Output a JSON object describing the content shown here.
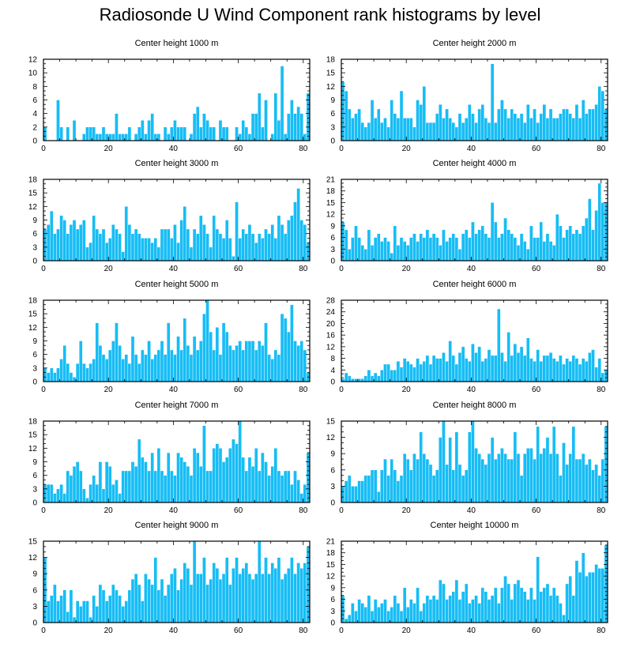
{
  "figure_title": "Radiosonde U Wind Component rank histograms by level",
  "colors": {
    "bar": "#17bdf5",
    "bar_edge": "#ffffff",
    "axis": "#000000"
  },
  "chart_data": [
    {
      "type": "bar",
      "title": "Center height 1000 m",
      "xlim": [
        0,
        82
      ],
      "ylim": [
        0,
        12
      ],
      "xticks": [
        0,
        20,
        40,
        60,
        80
      ],
      "yticks": [
        0,
        2,
        4,
        6,
        8,
        10,
        12
      ],
      "values": [
        2,
        0,
        0,
        0,
        6,
        2,
        0,
        2,
        0,
        3,
        0,
        0,
        1,
        2,
        2,
        2,
        1,
        1,
        2,
        1,
        1,
        1,
        4,
        1,
        1,
        1,
        2,
        0,
        1,
        2,
        3,
        1,
        3,
        4,
        1,
        1,
        0,
        2,
        1,
        2,
        3,
        2,
        2,
        2,
        0,
        1,
        4,
        5,
        2,
        4,
        3,
        2,
        2,
        0,
        3,
        2,
        2,
        0,
        0,
        2,
        1,
        3,
        2,
        1,
        4,
        4,
        7,
        2,
        6,
        0,
        1,
        7,
        3,
        11,
        1,
        4,
        6,
        4,
        5,
        4,
        1,
        7
      ]
    },
    {
      "type": "bar",
      "title": "Center height 2000 m",
      "xlim": [
        0,
        82
      ],
      "ylim": [
        0,
        18
      ],
      "xticks": [
        0,
        20,
        40,
        60,
        80
      ],
      "yticks": [
        0,
        3,
        6,
        9,
        12,
        15,
        18
      ],
      "values": [
        13,
        11,
        7,
        5,
        6,
        7,
        4,
        3,
        4,
        9,
        5,
        7,
        4,
        5,
        3,
        9,
        6,
        5,
        11,
        5,
        5,
        5,
        3,
        9,
        8,
        12,
        4,
        4,
        4,
        6,
        8,
        5,
        7,
        5,
        4,
        3,
        6,
        4,
        5,
        8,
        6,
        4,
        7,
        8,
        5,
        4,
        17,
        4,
        7,
        9,
        7,
        5,
        7,
        6,
        5,
        6,
        4,
        8,
        5,
        7,
        4,
        6,
        8,
        5,
        7,
        5,
        5,
        6,
        7,
        7,
        6,
        5,
        8,
        5,
        9,
        6,
        7,
        7,
        8,
        12,
        11,
        7
      ]
    },
    {
      "type": "bar",
      "title": "Center height 3000 m",
      "xlim": [
        0,
        82
      ],
      "ylim": [
        0,
        18
      ],
      "xticks": [
        0,
        20,
        40,
        60,
        80
      ],
      "yticks": [
        0,
        3,
        6,
        9,
        12,
        15,
        18
      ],
      "values": [
        7,
        8,
        11,
        6,
        7,
        10,
        9,
        6,
        8,
        9,
        7,
        8,
        9,
        3,
        4,
        10,
        7,
        6,
        7,
        4,
        5,
        8,
        7,
        6,
        2,
        12,
        8,
        6,
        7,
        6,
        5,
        5,
        5,
        4,
        5,
        3,
        7,
        7,
        7,
        5,
        8,
        4,
        9,
        12,
        7,
        3,
        7,
        6,
        10,
        8,
        6,
        3,
        10,
        7,
        6,
        5,
        9,
        5,
        1,
        13,
        5,
        7,
        6,
        8,
        6,
        4,
        6,
        5,
        7,
        6,
        8,
        5,
        10,
        8,
        6,
        9,
        10,
        13,
        16,
        9,
        8,
        4
      ]
    },
    {
      "type": "bar",
      "title": "Center height 4000 m",
      "xlim": [
        0,
        82
      ],
      "ylim": [
        0,
        21
      ],
      "xticks": [
        0,
        20,
        40,
        60,
        80
      ],
      "yticks": [
        0,
        3,
        6,
        9,
        12,
        15,
        18,
        21
      ],
      "values": [
        10,
        8,
        3,
        6,
        9,
        6,
        4,
        3,
        8,
        4,
        6,
        7,
        5,
        6,
        5,
        2,
        9,
        4,
        6,
        5,
        4,
        6,
        7,
        5,
        7,
        6,
        8,
        6,
        7,
        6,
        4,
        8,
        5,
        6,
        7,
        6,
        3,
        7,
        8,
        6,
        10,
        7,
        8,
        9,
        7,
        6,
        15,
        10,
        6,
        7,
        11,
        8,
        7,
        6,
        4,
        7,
        5,
        3,
        9,
        6,
        6,
        10,
        5,
        7,
        5,
        4,
        12,
        9,
        6,
        8,
        9,
        7,
        8,
        7,
        9,
        11,
        16,
        8,
        13,
        20,
        15,
        15
      ]
    },
    {
      "type": "bar",
      "title": "Center height 5000 m",
      "xlim": [
        0,
        82
      ],
      "ylim": [
        0,
        18
      ],
      "xticks": [
        0,
        20,
        40,
        60,
        80
      ],
      "yticks": [
        0,
        3,
        6,
        9,
        12,
        15,
        18
      ],
      "values": [
        3,
        2,
        3,
        2,
        3,
        5,
        8,
        4,
        2,
        1,
        4,
        9,
        4,
        3,
        4,
        5,
        13,
        8,
        6,
        5,
        7,
        9,
        13,
        8,
        5,
        6,
        4,
        10,
        6,
        4,
        7,
        6,
        9,
        5,
        6,
        7,
        9,
        6,
        13,
        7,
        6,
        10,
        7,
        14,
        8,
        6,
        10,
        7,
        9,
        15,
        18,
        11,
        7,
        12,
        6,
        13,
        11,
        8,
        7,
        8,
        9,
        7,
        9,
        9,
        9,
        7,
        9,
        8,
        13,
        6,
        5,
        7,
        6,
        15,
        14,
        11,
        17,
        9,
        8,
        9,
        7,
        2
      ]
    },
    {
      "type": "bar",
      "title": "Center height 6000 m",
      "xlim": [
        0,
        82
      ],
      "ylim": [
        0,
        28
      ],
      "xticks": [
        0,
        20,
        40,
        60,
        80
      ],
      "yticks": [
        0,
        4,
        8,
        12,
        16,
        20,
        24,
        28
      ],
      "values": [
        1,
        3,
        2,
        1,
        1,
        1,
        1,
        2,
        4,
        2,
        3,
        2,
        4,
        6,
        6,
        4,
        4,
        7,
        5,
        8,
        7,
        6,
        5,
        8,
        6,
        7,
        9,
        6,
        9,
        8,
        8,
        10,
        7,
        14,
        9,
        6,
        10,
        12,
        8,
        7,
        13,
        10,
        12,
        7,
        8,
        11,
        9,
        9,
        25,
        10,
        7,
        17,
        9,
        13,
        10,
        12,
        9,
        15,
        8,
        7,
        11,
        7,
        9,
        9,
        10,
        8,
        7,
        9,
        6,
        8,
        7,
        9,
        8,
        6,
        8,
        7,
        10,
        11,
        5,
        8,
        3,
        4
      ]
    },
    {
      "type": "bar",
      "title": "Center height 7000 m",
      "xlim": [
        0,
        82
      ],
      "ylim": [
        0,
        18
      ],
      "xticks": [
        0,
        20,
        40,
        60,
        80
      ],
      "yticks": [
        0,
        3,
        6,
        9,
        12,
        15,
        18
      ],
      "values": [
        4,
        4,
        4,
        2,
        3,
        4,
        2,
        7,
        6,
        8,
        9,
        7,
        3,
        1,
        4,
        6,
        4,
        9,
        3,
        9,
        8,
        4,
        5,
        2,
        7,
        7,
        7,
        9,
        8,
        14,
        10,
        9,
        7,
        11,
        7,
        12,
        7,
        6,
        11,
        7,
        6,
        11,
        10,
        9,
        8,
        6,
        12,
        11,
        8,
        17,
        7,
        7,
        12,
        13,
        12,
        9,
        10,
        12,
        14,
        13,
        18,
        10,
        7,
        10,
        8,
        12,
        7,
        11,
        9,
        6,
        8,
        12,
        7,
        6,
        7,
        7,
        4,
        7,
        5,
        2,
        4,
        11
      ]
    },
    {
      "type": "bar",
      "title": "Center height 8000 m",
      "xlim": [
        0,
        82
      ],
      "ylim": [
        0,
        15
      ],
      "xticks": [
        0,
        20,
        40,
        60,
        80
      ],
      "yticks": [
        0,
        3,
        6,
        9,
        12,
        15
      ],
      "values": [
        3,
        4,
        5,
        3,
        3,
        4,
        4,
        5,
        5,
        6,
        6,
        2,
        6,
        8,
        5,
        8,
        6,
        4,
        5,
        9,
        8,
        6,
        9,
        8,
        13,
        9,
        8,
        7,
        5,
        6,
        12,
        15,
        7,
        12,
        6,
        13,
        7,
        5,
        6,
        13,
        15,
        10,
        9,
        8,
        7,
        9,
        12,
        8,
        9,
        10,
        9,
        8,
        8,
        13,
        9,
        5,
        9,
        10,
        10,
        8,
        14,
        9,
        10,
        12,
        9,
        14,
        9,
        5,
        11,
        7,
        9,
        14,
        8,
        8,
        9,
        7,
        8,
        6,
        7,
        5,
        8,
        14
      ]
    },
    {
      "type": "bar",
      "title": "Center height 9000 m",
      "xlim": [
        0,
        82
      ],
      "ylim": [
        0,
        15
      ],
      "xticks": [
        0,
        20,
        40,
        60,
        80
      ],
      "yticks": [
        0,
        3,
        6,
        9,
        12,
        15
      ],
      "values": [
        12,
        4,
        5,
        7,
        4,
        5,
        6,
        2,
        6,
        1,
        4,
        3,
        4,
        4,
        1,
        5,
        3,
        7,
        6,
        4,
        5,
        7,
        6,
        5,
        3,
        4,
        6,
        8,
        9,
        7,
        4,
        9,
        8,
        7,
        12,
        6,
        8,
        5,
        7,
        9,
        10,
        6,
        8,
        11,
        10,
        7,
        15,
        9,
        9,
        12,
        7,
        8,
        11,
        10,
        8,
        9,
        12,
        7,
        10,
        12,
        9,
        10,
        11,
        9,
        8,
        9,
        15,
        9,
        12,
        9,
        11,
        10,
        12,
        8,
        9,
        10,
        12,
        9,
        11,
        10,
        11,
        14
      ]
    },
    {
      "type": "bar",
      "title": "Center height 10000 m",
      "xlim": [
        0,
        82
      ],
      "ylim": [
        0,
        21
      ],
      "xticks": [
        0,
        20,
        40,
        60,
        80
      ],
      "yticks": [
        0,
        3,
        6,
        9,
        12,
        15,
        18,
        21
      ],
      "values": [
        7,
        1,
        2,
        5,
        3,
        6,
        5,
        4,
        7,
        3,
        6,
        4,
        5,
        6,
        3,
        4,
        7,
        5,
        3,
        9,
        4,
        6,
        5,
        9,
        3,
        5,
        7,
        6,
        7,
        6,
        11,
        10,
        6,
        7,
        8,
        11,
        6,
        8,
        10,
        5,
        6,
        7,
        5,
        9,
        8,
        6,
        7,
        9,
        5,
        9,
        12,
        10,
        6,
        10,
        11,
        9,
        8,
        6,
        9,
        6,
        17,
        8,
        9,
        10,
        7,
        9,
        7,
        5,
        2,
        10,
        12,
        7,
        16,
        13,
        18,
        12,
        13,
        13,
        15,
        14,
        14,
        20
      ]
    }
  ]
}
